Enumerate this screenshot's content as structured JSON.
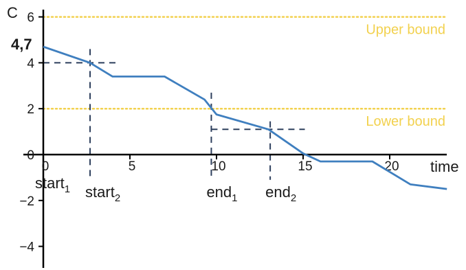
{
  "chart_data": {
    "type": "line",
    "xlabel": "time",
    "ylabel": "C",
    "xlim": [
      0,
      24.3
    ],
    "ylim": [
      -5,
      6.3
    ],
    "x_ticks": [
      0,
      5,
      10,
      15,
      20
    ],
    "y_ticks": [
      6,
      4,
      2,
      0,
      -2,
      -4
    ],
    "x_tick_labels": [
      "0",
      "5",
      "10",
      "15",
      "20"
    ],
    "y_tick_labels": [
      "6",
      "4",
      "2",
      "0",
      "−2",
      "−4"
    ],
    "grid": false,
    "series": [
      {
        "color": "#3f7fbf",
        "points": [
          [
            0,
            4.7
          ],
          [
            2.7,
            4.0
          ],
          [
            4,
            3.4
          ],
          [
            7,
            3.4
          ],
          [
            9.3,
            2.4
          ],
          [
            10,
            1.75
          ],
          [
            13,
            1.1
          ],
          [
            15,
            0.05
          ],
          [
            16,
            -0.3
          ],
          [
            19,
            -0.3
          ],
          [
            21.2,
            -1.3
          ],
          [
            23.3,
            -1.5
          ]
        ]
      }
    ],
    "bounds": [
      {
        "label": "Upper bound",
        "y": 6,
        "color": "#f2d14e"
      },
      {
        "label": "Lower bound",
        "y": 2,
        "color": "#f2d14e"
      }
    ],
    "value_annotation": {
      "text": "4,7",
      "y": 4.7
    },
    "markers": [
      {
        "x": 2.7,
        "label": "start",
        "sub": "2",
        "h_line_y": 4.0,
        "h_from": 0,
        "h_to": 4.2,
        "y_top": 4.6,
        "y_bottom": -1.1
      },
      {
        "x": 9.7,
        "label": "end",
        "sub": "1",
        "h_line_y": null,
        "h_from": null,
        "h_to": null,
        "y_top": 2.7,
        "y_bottom": -1.1
      },
      {
        "x": 13.1,
        "label": "end",
        "sub": "2",
        "h_line_y": 1.1,
        "h_from": 9.7,
        "h_to": 15.1,
        "y_top": 1.45,
        "y_bottom": -1.1
      }
    ],
    "origin_marker": {
      "label": "start",
      "sub": "1"
    },
    "marker_color": "#2c3e5c"
  }
}
